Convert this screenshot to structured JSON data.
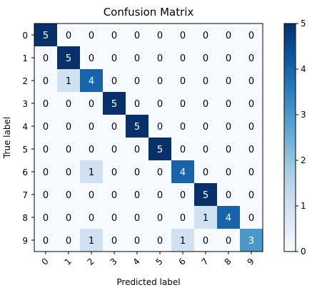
{
  "chart_data": {
    "type": "heatmap",
    "title": "Confusion Matrix",
    "xlabel": "Predicted label",
    "ylabel": "True label",
    "x_tick_labels": [
      "0",
      "1",
      "2",
      "3",
      "4",
      "5",
      "6",
      "7",
      "8",
      "9"
    ],
    "y_tick_labels": [
      "0",
      "1",
      "2",
      "3",
      "4",
      "5",
      "6",
      "7",
      "8",
      "9"
    ],
    "matrix": [
      [
        5,
        0,
        0,
        0,
        0,
        0,
        0,
        0,
        0,
        0
      ],
      [
        0,
        5,
        0,
        0,
        0,
        0,
        0,
        0,
        0,
        0
      ],
      [
        0,
        1,
        4,
        0,
        0,
        0,
        0,
        0,
        0,
        0
      ],
      [
        0,
        0,
        0,
        5,
        0,
        0,
        0,
        0,
        0,
        0
      ],
      [
        0,
        0,
        0,
        0,
        5,
        0,
        0,
        0,
        0,
        0
      ],
      [
        0,
        0,
        0,
        0,
        0,
        5,
        0,
        0,
        0,
        0
      ],
      [
        0,
        0,
        1,
        0,
        0,
        0,
        4,
        0,
        0,
        0
      ],
      [
        0,
        0,
        0,
        0,
        0,
        0,
        0,
        5,
        0,
        0
      ],
      [
        0,
        0,
        0,
        0,
        0,
        0,
        0,
        1,
        4,
        0
      ],
      [
        0,
        0,
        1,
        0,
        0,
        0,
        1,
        0,
        0,
        3
      ]
    ],
    "colormap": "Blues",
    "color_range": [
      0,
      5
    ],
    "colorbar_ticks": [
      "0",
      "1",
      "2",
      "3",
      "4",
      "5"
    ],
    "colormap_stops": [
      "#f7fbff",
      "#deebf7",
      "#c6dbef",
      "#9ecae1",
      "#6baed6",
      "#4292c6",
      "#2171b5",
      "#08519c",
      "#08306b"
    ],
    "x_tick_rotation_deg": -45,
    "grid": false
  }
}
